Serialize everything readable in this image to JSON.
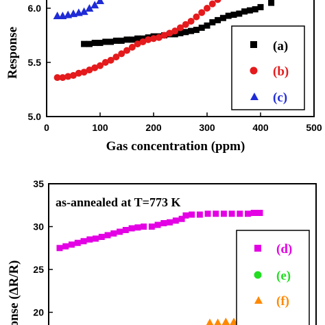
{
  "chart_data": [
    {
      "type": "scatter",
      "xlabel": "Gas concentration (ppm)",
      "ylabel": "Response",
      "xlim": [
        0,
        500
      ],
      "ylim": [
        5.0,
        6.2
      ],
      "x_ticks": [
        "0",
        "100",
        "200",
        "300",
        "400",
        "500"
      ],
      "y_ticks": [
        "5.0",
        "5.5",
        "6.0"
      ],
      "legend_position": "bottom-right",
      "series": [
        {
          "name": "(a)",
          "color": "#000000",
          "marker": "square",
          "x": [
            70,
            80,
            90,
            100,
            110,
            120,
            130,
            140,
            150,
            160,
            170,
            180,
            190,
            200,
            210,
            220,
            230,
            240,
            250,
            260,
            270,
            280,
            290,
            300,
            310,
            320,
            330,
            340,
            350,
            360,
            370,
            380,
            390,
            400,
            420
          ],
          "y": [
            5.67,
            5.67,
            5.68,
            5.68,
            5.69,
            5.69,
            5.7,
            5.7,
            5.71,
            5.71,
            5.72,
            5.72,
            5.73,
            5.74,
            5.74,
            5.75,
            5.76,
            5.76,
            5.77,
            5.78,
            5.79,
            5.8,
            5.82,
            5.84,
            5.87,
            5.89,
            5.91,
            5.93,
            5.94,
            5.95,
            5.97,
            5.98,
            5.99,
            6.01,
            6.05
          ]
        },
        {
          "name": "(b)",
          "color": "#e41a1c",
          "marker": "circle",
          "x": [
            20,
            30,
            40,
            50,
            60,
            70,
            80,
            90,
            100,
            110,
            120,
            130,
            140,
            150,
            160,
            170,
            180,
            190,
            200,
            210,
            220,
            230,
            240,
            250,
            260,
            270,
            280,
            290,
            300,
            310,
            320
          ],
          "y": [
            5.36,
            5.36,
            5.37,
            5.38,
            5.4,
            5.41,
            5.43,
            5.45,
            5.47,
            5.5,
            5.52,
            5.55,
            5.58,
            5.61,
            5.64,
            5.67,
            5.69,
            5.71,
            5.72,
            5.73,
            5.75,
            5.77,
            5.79,
            5.82,
            5.85,
            5.88,
            5.92,
            5.96,
            6.0,
            6.04,
            6.08
          ]
        },
        {
          "name": "(c)",
          "color": "#1f2bd6",
          "marker": "triangle",
          "x": [
            20,
            30,
            40,
            50,
            60,
            70,
            80,
            90,
            100,
            110
          ],
          "y": [
            5.93,
            5.93,
            5.94,
            5.95,
            5.96,
            5.97,
            6.0,
            6.03,
            6.07,
            6.12
          ]
        }
      ]
    },
    {
      "type": "scatter",
      "annotation": "as-annealed at T=773 K",
      "ylabel": "ponse (ΔR/R)",
      "ylim": [
        18.5,
        35
      ],
      "y_ticks": [
        "20",
        "25",
        "30",
        "35"
      ],
      "legend_position": "right",
      "series": [
        {
          "name": "(d)",
          "color": "#e400e4",
          "marker": "square",
          "points": [
            [
              0.0,
              27.5
            ],
            [
              0.03,
              27.7
            ],
            [
              0.06,
              27.9
            ],
            [
              0.09,
              28.1
            ],
            [
              0.12,
              28.3
            ],
            [
              0.15,
              28.5
            ],
            [
              0.18,
              28.6
            ],
            [
              0.21,
              28.8
            ],
            [
              0.24,
              29.0
            ],
            [
              0.27,
              29.2
            ],
            [
              0.3,
              29.4
            ],
            [
              0.33,
              29.6
            ],
            [
              0.36,
              29.8
            ],
            [
              0.39,
              29.9
            ],
            [
              0.42,
              30.0
            ],
            [
              0.46,
              30.0
            ],
            [
              0.49,
              30.2
            ],
            [
              0.52,
              30.4
            ],
            [
              0.55,
              30.5
            ],
            [
              0.58,
              30.7
            ],
            [
              0.61,
              30.9
            ],
            [
              0.63,
              31.3
            ],
            [
              0.66,
              31.4
            ],
            [
              0.7,
              31.4
            ],
            [
              0.74,
              31.5
            ],
            [
              0.78,
              31.5
            ],
            [
              0.82,
              31.5
            ],
            [
              0.86,
              31.5
            ],
            [
              0.9,
              31.5
            ],
            [
              0.94,
              31.5
            ],
            [
              0.97,
              31.6
            ],
            [
              1.0,
              31.6
            ]
          ]
        },
        {
          "name": "(e)",
          "color": "#22dd22",
          "marker": "circle",
          "points": [
            [
              0.995,
              18.9
            ],
            [
              1.07,
              19.0
            ]
          ]
        },
        {
          "name": "(f)",
          "color": "#ff8800",
          "marker": "triangle",
          "points": [
            [
              0.75,
              18.8
            ],
            [
              0.79,
              18.8
            ],
            [
              0.83,
              18.9
            ],
            [
              0.87,
              18.9
            ]
          ]
        }
      ]
    }
  ]
}
